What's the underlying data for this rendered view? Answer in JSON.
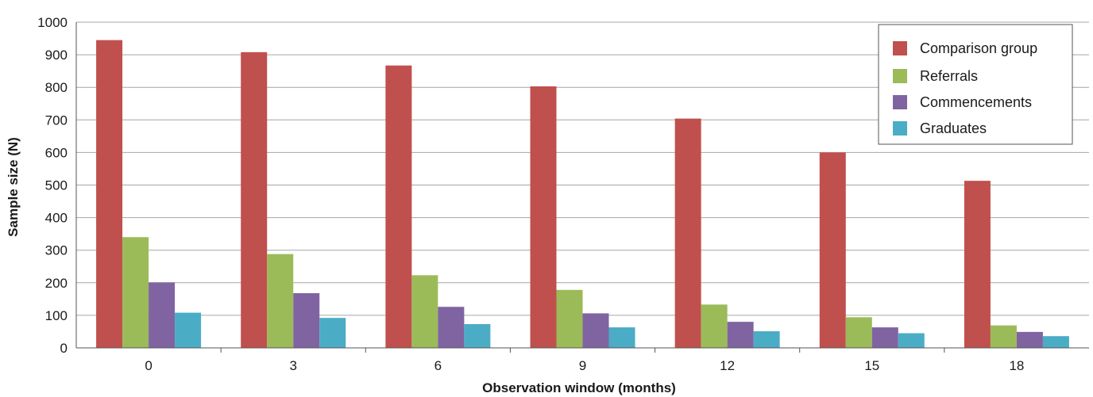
{
  "chart_data": {
    "type": "bar",
    "title": "",
    "xlabel": "Observation window (months)",
    "ylabel": "Sample size (N)",
    "categories": [
      "0",
      "3",
      "6",
      "9",
      "12",
      "15",
      "18"
    ],
    "ylim": [
      0,
      1000
    ],
    "yticks": [
      0,
      100,
      200,
      300,
      400,
      500,
      600,
      700,
      800,
      900,
      1000
    ],
    "grid": true,
    "legend_position": "top-right",
    "series": [
      {
        "name": "Comparison group",
        "color": "#c0504d",
        "values": [
          945,
          908,
          867,
          803,
          704,
          600,
          513
        ]
      },
      {
        "name": "Referrals",
        "color": "#9bbb59",
        "values": [
          340,
          288,
          223,
          178,
          133,
          94,
          69
        ]
      },
      {
        "name": "Commencements",
        "color": "#8064a2",
        "values": [
          201,
          168,
          126,
          106,
          80,
          63,
          49
        ]
      },
      {
        "name": "Graduates",
        "color": "#4bacc6",
        "values": [
          108,
          92,
          73,
          63,
          51,
          45,
          36
        ]
      }
    ]
  }
}
